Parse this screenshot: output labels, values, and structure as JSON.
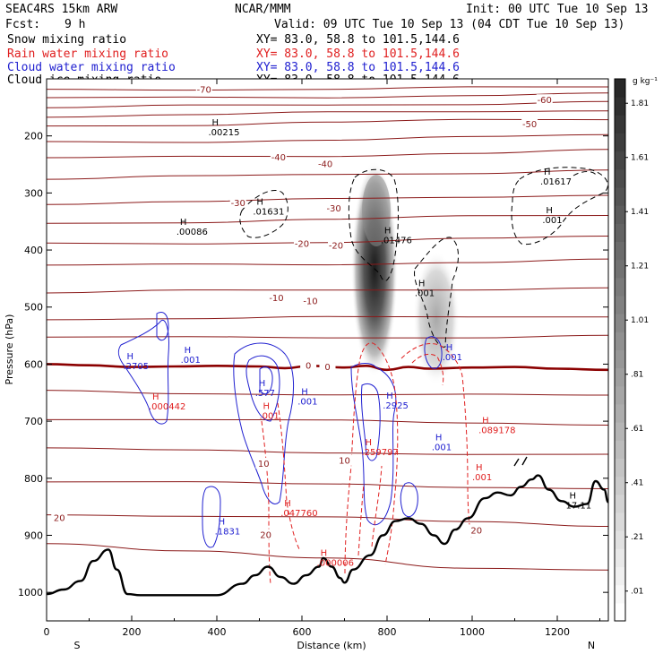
{
  "header": {
    "model": "SEAC4RS 15km ARW",
    "center": "NCAR/MMM",
    "init": "Init: 00 UTC Tue 10 Sep 13",
    "fcst_label": "Fcst:",
    "fcst_value": "9 h",
    "valid": "Valid: 09 UTC Tue 10 Sep 13 (04 CDT Tue 10 Sep 13)",
    "xs_text": "XY=  83.0, 58.8 to 101.5,144.6"
  },
  "fields": [
    {
      "label": "Snow mixing ratio",
      "color": "#000000"
    },
    {
      "label": "Rain water mixing ratio",
      "color": "#e02020"
    },
    {
      "label": "Cloud water mixing ratio",
      "color": "#2020d0"
    },
    {
      "label": "Cloud ice mixing ratio",
      "color": "#000000"
    }
  ],
  "colors": {
    "temperature": "#8b1a1a",
    "freezing_level": "#8b0000",
    "rain": "#e02020",
    "cloud_water": "#2020d0",
    "snow": "#000000",
    "terrain": "#000000"
  },
  "chart_data": {
    "type": "heatmap",
    "xlabel": "Distance (km)",
    "ylabel": "Pressure (hPa)",
    "xlim": [
      0,
      1320
    ],
    "ylim": [
      1050,
      100
    ],
    "x_ticks": [
      0,
      200,
      400,
      600,
      800,
      1000,
      1200
    ],
    "y_ticks": [
      200,
      300,
      400,
      500,
      600,
      700,
      800,
      900,
      1000
    ],
    "x_end_labels": {
      "left": "S",
      "right": "N"
    },
    "colorbar": {
      "unit": "g kg⁻¹",
      "levels": [
        ".01",
        ".21",
        ".41",
        ".61",
        ".81",
        "1.01",
        "1.21",
        "1.41",
        "1.61",
        "1.81"
      ]
    },
    "isotherm_labels": [
      {
        "text": "-70",
        "x": 370,
        "p": 120
      },
      {
        "text": "-60",
        "x": 1170,
        "p": 138
      },
      {
        "text": "-50",
        "x": 1135,
        "p": 180
      },
      {
        "text": "-40",
        "x": 545,
        "p": 238
      },
      {
        "text": "-40",
        "x": 655,
        "p": 250
      },
      {
        "text": "-30",
        "x": 450,
        "p": 318
      },
      {
        "text": "-30",
        "x": 675,
        "p": 328
      },
      {
        "text": "-20",
        "x": 600,
        "p": 390
      },
      {
        "text": "-20",
        "x": 680,
        "p": 393
      },
      {
        "text": "-10",
        "x": 540,
        "p": 485
      },
      {
        "text": "-10",
        "x": 620,
        "p": 490
      },
      {
        "text": "0",
        "x": 615,
        "p": 603
      },
      {
        "text": "0",
        "x": 660,
        "p": 606
      },
      {
        "text": "10",
        "x": 510,
        "p": 775
      },
      {
        "text": "10",
        "x": 700,
        "p": 770
      },
      {
        "text": "20",
        "x": 30,
        "p": 870
      },
      {
        "text": "20",
        "x": 515,
        "p": 900
      },
      {
        "text": "20",
        "x": 1010,
        "p": 892
      }
    ],
    "max_labels": [
      {
        "text": ".00215",
        "x": 380,
        "p": 196,
        "field": "snow"
      },
      {
        "text": ".01631",
        "x": 485,
        "p": 335,
        "field": "snow"
      },
      {
        "text": ".00086",
        "x": 305,
        "p": 370,
        "field": "snow"
      },
      {
        "text": ".01476",
        "x": 785,
        "p": 385,
        "field": "snow"
      },
      {
        "text": ".001",
        "x": 865,
        "p": 478,
        "field": "snow"
      },
      {
        "text": ".01617",
        "x": 1160,
        "p": 282,
        "field": "snow"
      },
      {
        "text": ".001",
        "x": 1165,
        "p": 350,
        "field": "snow"
      },
      {
        "text": ".2705",
        "x": 180,
        "p": 606,
        "field": "cloud_water"
      },
      {
        "text": ".001",
        "x": 315,
        "p": 595,
        "field": "cloud_water"
      },
      {
        "text": ".577",
        "x": 490,
        "p": 653,
        "field": "cloud_water"
      },
      {
        "text": ".001",
        "x": 590,
        "p": 668,
        "field": "cloud_water"
      },
      {
        "text": ".2925",
        "x": 790,
        "p": 675,
        "field": "cloud_water"
      },
      {
        "text": ".001",
        "x": 905,
        "p": 748,
        "field": "cloud_water"
      },
      {
        "text": ".001",
        "x": 930,
        "p": 590,
        "field": "cloud_water"
      },
      {
        "text": ".1831",
        "x": 395,
        "p": 895,
        "field": "cloud_water"
      },
      {
        "text": ".000442",
        "x": 240,
        "p": 676,
        "field": "rain"
      },
      {
        "text": ".001",
        "x": 500,
        "p": 693,
        "field": "rain"
      },
      {
        "text": ".259797",
        "x": 740,
        "p": 756,
        "field": "rain"
      },
      {
        "text": ".089178",
        "x": 1015,
        "p": 718,
        "field": "rain"
      },
      {
        "text": ".001",
        "x": 1000,
        "p": 800,
        "field": "rain"
      },
      {
        "text": ".047760",
        "x": 550,
        "p": 863,
        "field": "rain"
      },
      {
        "text": ".000006",
        "x": 635,
        "p": 950,
        "field": "rain"
      },
      {
        "text": "17.11",
        "x": 1220,
        "p": 850,
        "field": "snow"
      }
    ],
    "terrain": [
      [
        0,
        1003
      ],
      [
        40,
        995
      ],
      [
        80,
        980
      ],
      [
        110,
        945
      ],
      [
        145,
        925
      ],
      [
        165,
        960
      ],
      [
        190,
        1003
      ],
      [
        220,
        1005
      ],
      [
        300,
        1005
      ],
      [
        400,
        1005
      ],
      [
        460,
        985
      ],
      [
        490,
        970
      ],
      [
        520,
        955
      ],
      [
        550,
        973
      ],
      [
        580,
        985
      ],
      [
        610,
        970
      ],
      [
        640,
        955
      ],
      [
        650,
        940
      ],
      [
        670,
        955
      ],
      [
        690,
        975
      ],
      [
        700,
        983
      ],
      [
        720,
        960
      ],
      [
        760,
        935
      ],
      [
        790,
        900
      ],
      [
        820,
        875
      ],
      [
        850,
        870
      ],
      [
        880,
        880
      ],
      [
        910,
        900
      ],
      [
        935,
        915
      ],
      [
        960,
        890
      ],
      [
        990,
        870
      ],
      [
        1030,
        835
      ],
      [
        1060,
        825
      ],
      [
        1090,
        830
      ],
      [
        1115,
        815
      ],
      [
        1140,
        802
      ],
      [
        1155,
        795
      ],
      [
        1180,
        820
      ],
      [
        1210,
        840
      ],
      [
        1240,
        850
      ],
      [
        1270,
        845
      ],
      [
        1290,
        805
      ],
      [
        1310,
        820
      ],
      [
        1320,
        842
      ]
    ],
    "freezing_level": [
      [
        0,
        600
      ],
      [
        100,
        602
      ],
      [
        200,
        605
      ],
      [
        300,
        604
      ],
      [
        400,
        603
      ],
      [
        500,
        604
      ],
      [
        560,
        607
      ],
      [
        620,
        603
      ],
      [
        700,
        606
      ],
      [
        750,
        603
      ],
      [
        800,
        610
      ],
      [
        850,
        605
      ],
      [
        900,
        608
      ],
      [
        1000,
        606
      ],
      [
        1100,
        605
      ],
      [
        1200,
        608
      ],
      [
        1320,
        610
      ]
    ],
    "isotherms": [
      {
        "t": -70,
        "p": [
          120,
          118,
          117,
          116,
          115
        ]
      },
      {
        "t": -65,
        "p": [
          135,
          133,
          131,
          129,
          127
        ]
      },
      {
        "t": -60,
        "p": [
          150,
          148,
          146,
          143,
          140
        ]
      },
      {
        "t": -55,
        "p": [
          165,
          163,
          160,
          157,
          154
        ]
      },
      {
        "t": -50,
        "p": [
          182,
          180,
          177,
          173,
          170
        ]
      },
      {
        "t": -45,
        "p": [
          212,
          210,
          206,
          203,
          199
        ]
      },
      {
        "t": -40,
        "p": [
          240,
          237,
          234,
          230,
          226
        ]
      },
      {
        "t": -35,
        "p": [
          275,
          272,
          268,
          264,
          260
        ]
      },
      {
        "t": -30,
        "p": [
          318,
          315,
          312,
          307,
          302
        ]
      },
      {
        "t": -25,
        "p": [
          353,
          350,
          347,
          342,
          338
        ]
      },
      {
        "t": -20,
        "p": [
          390,
          388,
          385,
          381,
          377
        ]
      },
      {
        "t": -15,
        "p": [
          428,
          426,
          424,
          421,
          418
        ]
      },
      {
        "t": -10,
        "p": [
          474,
          472,
          471,
          468,
          466
        ]
      },
      {
        "t": -5,
        "p": [
          520,
          520,
          519,
          517,
          515
        ]
      },
      {
        "t": -3,
        "p": [
          553,
          554,
          553,
          552,
          551
        ]
      },
      {
        "t": 5,
        "p": [
          648,
          651,
          652,
          654,
          656
        ]
      },
      {
        "t": 8,
        "p": [
          695,
          698,
          700,
          702,
          705
        ]
      },
      {
        "t": 10,
        "p": [
          748,
          752,
          754,
          757,
          760
        ]
      },
      {
        "t": 15,
        "p": [
          805,
          808,
          811,
          814,
          818
        ]
      },
      {
        "t": 20,
        "p": [
          862,
          866,
          870,
          876,
          882
        ]
      },
      {
        "t": 25,
        "p": [
          915,
          925,
          940,
          960,
          960
        ]
      }
    ]
  }
}
